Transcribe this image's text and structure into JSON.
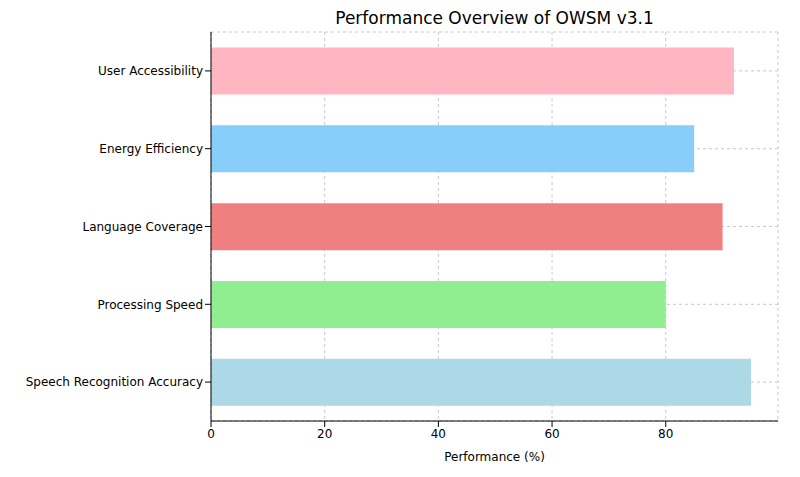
{
  "chart_data": {
    "type": "bar",
    "title": "Performance Overview of OWSM v3.1",
    "x_label": "Performance (%)",
    "orientation": "horizontal",
    "categories": [
      "User Accessibility",
      "Energy Efficiency",
      "Language Coverage",
      "Processing Speed",
      "Speech Recognition Accuracy"
    ],
    "values": [
      92,
      85,
      90,
      80,
      95
    ],
    "colors": [
      "#ffb6c1",
      "#87cefa",
      "#f08080",
      "#90ee90",
      "#add8e6"
    ],
    "xlim": [
      0,
      99.75
    ],
    "xticks": [
      0,
      20,
      40,
      60,
      80
    ],
    "grid": true
  }
}
